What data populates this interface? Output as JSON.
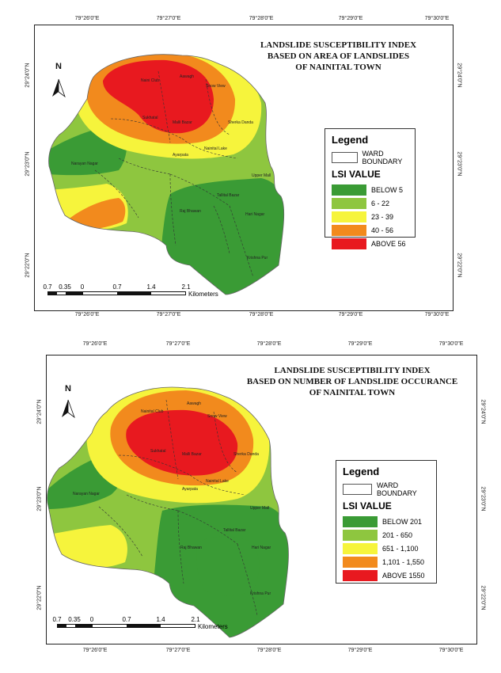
{
  "maps": [
    {
      "title_lines": [
        "LANDSLIDE SUSCEPTIBILITY INDEX",
        "BASED ON AREA OF LANDSLIDES",
        "OF NAINITAL TOWN"
      ],
      "north_label": "N",
      "lon_ticks": [
        "79°26'0\"E",
        "79°27'0\"E",
        "79°28'0\"E",
        "79°29'0\"E",
        "79°30'0\"E"
      ],
      "lat_ticks": [
        "29°24'0\"N",
        "29°23'0\"N",
        "29°22'0\"N"
      ],
      "legend": {
        "title": "Legend",
        "boundary_label": "WARD BOUNDARY",
        "value_title": "LSI VALUE",
        "classes": [
          {
            "label": "BELOW 5",
            "color": "#3a9b35"
          },
          {
            "label": "6 - 22",
            "color": "#8ec63f"
          },
          {
            "label": "23 - 39",
            "color": "#f6f43c"
          },
          {
            "label": "40 - 56",
            "color": "#f28a1d"
          },
          {
            "label": "ABOVE 56",
            "color": "#e8191f"
          }
        ]
      },
      "scale": {
        "labels": [
          "0.7",
          "0.35",
          "0",
          "0.7",
          "1.4",
          "2.1"
        ],
        "unit": "Kilometers"
      },
      "places": [
        "Naini Club",
        "Aawagh",
        "Snow View",
        "Sukhatal",
        "Malli Bazar",
        "Sherka Danda",
        "Narayan Nagar",
        "Ayarpata",
        "Nainital Lake",
        "Upper Mall",
        "Tallital Bazar",
        "Raj Bhawan",
        "Hari Nagar",
        "Krishna Pur"
      ]
    },
    {
      "title_lines": [
        "LANDSLIDE SUSCEPTIBILITY INDEX",
        "BASED ON NUMBER OF LANDSLIDE OCCURANCE",
        "OF NAINITAL TOWN"
      ],
      "north_label": "N",
      "lon_ticks": [
        "79°26'0\"E",
        "79°27'0\"E",
        "79°28'0\"E",
        "79°29'0\"E",
        "79°30'0\"E"
      ],
      "lat_ticks": [
        "29°24'0\"N",
        "29°23'0\"N",
        "29°22'0\"N"
      ],
      "legend": {
        "title": "Legend",
        "boundary_label": "WARD BOUNDARY",
        "value_title": "LSI VALUE",
        "classes": [
          {
            "label": "BELOW 201",
            "color": "#3a9b35"
          },
          {
            "label": "201 - 650",
            "color": "#8ec63f"
          },
          {
            "label": "651 - 1,100",
            "color": "#f6f43c"
          },
          {
            "label": "1,101 - 1,550",
            "color": "#f28a1d"
          },
          {
            "label": "ABOVE 1550",
            "color": "#e8191f"
          }
        ]
      },
      "scale": {
        "labels": [
          "0.7",
          "0.35",
          "0",
          "0.7",
          "1.4",
          "2.1"
        ],
        "unit": "Kilometers"
      },
      "places": [
        "Nainital Club",
        "Aawagh",
        "Snow View",
        "Sukhatal",
        "Malli Bazar",
        "Sherka Danda",
        "Narayan Nagar",
        "Ayarpata",
        "Nainital Lake",
        "Upper Mall",
        "Tallital Bazar",
        "Raj Bhawan",
        "Hari Nagar",
        "Krishna Pur"
      ]
    }
  ]
}
